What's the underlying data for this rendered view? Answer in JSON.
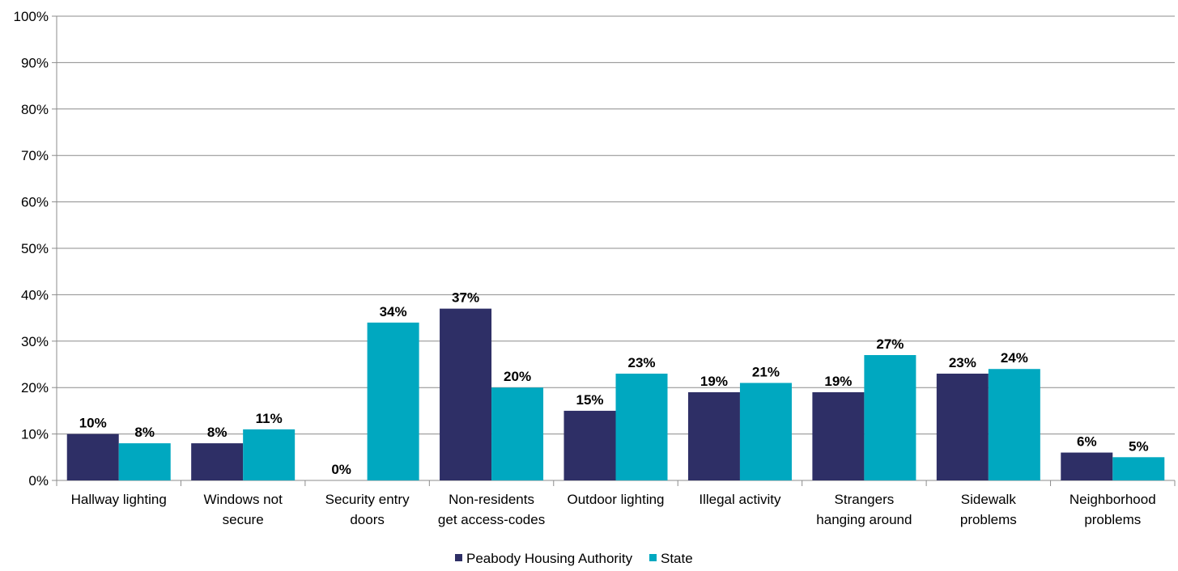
{
  "chart_data": {
    "type": "bar",
    "categories": [
      [
        "Hallway lighting"
      ],
      [
        "Windows not",
        "secure"
      ],
      [
        "Security entry",
        "doors"
      ],
      [
        "Non-residents",
        "get access-codes"
      ],
      [
        "Outdoor lighting"
      ],
      [
        "Illegal activity"
      ],
      [
        "Strangers",
        "hanging around"
      ],
      [
        "Sidewalk",
        "problems"
      ],
      [
        "Neighborhood",
        "problems"
      ]
    ],
    "series": [
      {
        "name": "Peabody Housing Authority",
        "color": "#2E2F66",
        "values": [
          10,
          8,
          0,
          37,
          15,
          19,
          19,
          23,
          6
        ],
        "labels": [
          "10%",
          "8%",
          "0%",
          "37%",
          "15%",
          "19%",
          "19%",
          "23%",
          "6%"
        ]
      },
      {
        "name": "State",
        "color": "#00A8C0",
        "values": [
          8,
          11,
          34,
          20,
          23,
          21,
          27,
          24,
          5
        ],
        "labels": [
          "8%",
          "11%",
          "34%",
          "20%",
          "23%",
          "21%",
          "27%",
          "24%",
          "5%"
        ]
      }
    ],
    "ylim": [
      0,
      100
    ],
    "yticks": [
      "0%",
      "10%",
      "20%",
      "30%",
      "40%",
      "50%",
      "60%",
      "70%",
      "80%",
      "90%",
      "100%"
    ],
    "grid": true,
    "legend_position": "bottom-center",
    "title": "",
    "xlabel": "",
    "ylabel": ""
  }
}
